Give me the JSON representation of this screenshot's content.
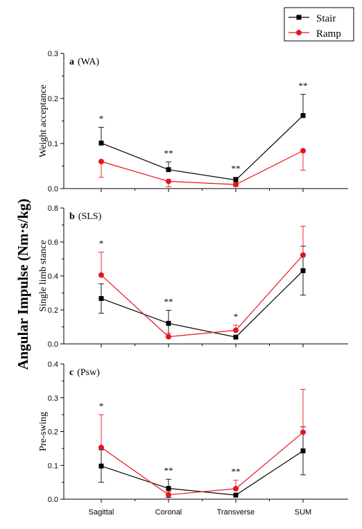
{
  "figure": {
    "ylabel_main": "Angular Impulse (Nm·s/kg)",
    "categories": [
      "Sagittal",
      "Coronal",
      "Transverse",
      "SUM"
    ],
    "legend": [
      {
        "name": "Stair",
        "color": "#000000",
        "marker": "square"
      },
      {
        "name": "Ramp",
        "color": "#e8141c",
        "marker": "circle"
      }
    ]
  },
  "chart_data": [
    {
      "type": "line",
      "panel_letter": "a",
      "panel_tag": "(WA)",
      "ylabel": "Weight acceptance",
      "ylim": [
        0,
        0.3
      ],
      "yticks": [
        "0.0",
        "0.1",
        "0.2",
        "0.3"
      ],
      "categories": [
        "Sagittal",
        "Coronal",
        "Transverse",
        "SUM"
      ],
      "series": [
        {
          "name": "Stair",
          "values": [
            0.101,
            0.042,
            0.019,
            0.162
          ],
          "err": [
            0.035,
            0.017,
            0.006,
            0.047
          ],
          "err_dir": "up"
        },
        {
          "name": "Ramp",
          "values": [
            0.06,
            0.016,
            0.009,
            0.084
          ],
          "err": [
            0.035,
            0.012,
            0.004,
            0.043
          ],
          "err_dir": "down"
        }
      ],
      "significance": [
        "*",
        "**",
        "**",
        "**"
      ]
    },
    {
      "type": "line",
      "panel_letter": "b",
      "panel_tag": "(SLS)",
      "ylabel": "Single limb stance",
      "ylim": [
        0,
        0.8
      ],
      "yticks": [
        "0.0",
        "0.2",
        "0.4",
        "0.6",
        "0.8"
      ],
      "categories": [
        "Sagittal",
        "Coronal",
        "Transverse",
        "SUM"
      ],
      "series": [
        {
          "name": "Stair",
          "values": [
            0.267,
            0.121,
            0.04,
            0.431
          ],
          "err": [
            0.087,
            0.077,
            0.0,
            0.144
          ],
          "err_dir": "both"
        },
        {
          "name": "Ramp",
          "values": [
            0.405,
            0.042,
            0.08,
            0.523
          ],
          "err": [
            0.135,
            0.02,
            0.03,
            0.17
          ],
          "err_dir": "up"
        }
      ],
      "significance": [
        "*",
        "**",
        "*",
        ""
      ]
    },
    {
      "type": "line",
      "panel_letter": "c",
      "panel_tag": "(Psw)",
      "ylabel": "Pre-swing",
      "ylim": [
        0,
        0.4
      ],
      "yticks": [
        "0.0",
        "0.1",
        "0.2",
        "0.3",
        "0.4"
      ],
      "categories": [
        "Sagittal",
        "Coronal",
        "Transverse",
        "SUM"
      ],
      "series": [
        {
          "name": "Stair",
          "values": [
            0.098,
            0.032,
            0.012,
            0.143
          ],
          "err": [
            0.048,
            0.027,
            0.0,
            0.071
          ],
          "err_dir": "both"
        },
        {
          "name": "Ramp",
          "values": [
            0.153,
            0.013,
            0.031,
            0.198
          ],
          "err": [
            0.097,
            0.01,
            0.025,
            0.127
          ],
          "err_dir": "up"
        }
      ],
      "significance": [
        "*",
        "**",
        "**",
        ""
      ]
    }
  ]
}
